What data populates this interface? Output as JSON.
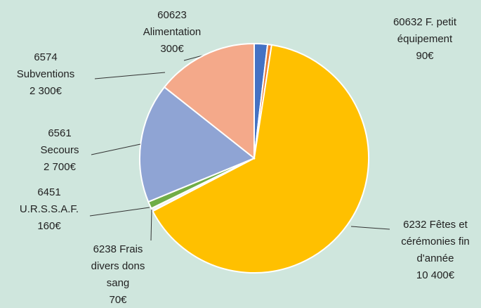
{
  "chart_data": {
    "type": "pie",
    "categories": [
      "60623 Alimentation",
      "60632 F. petit équipement",
      "6232 Fêtes et cérémonies fin d'année",
      "6238 Frais divers dons sang",
      "6451 U.R.S.S.A.F.",
      "6561 Secours",
      "6574 Subventions"
    ],
    "values": [
      300,
      90,
      10400,
      70,
      160,
      2700,
      2300
    ],
    "value_labels": [
      "300€",
      "90€",
      "10 400€",
      "70€",
      "160€",
      "2 700€",
      "2 300€"
    ],
    "colors": [
      "#4472c4",
      "#ed7d31",
      "#ffc000",
      "#f2f2f2",
      "#70ad47",
      "#8fa4d4",
      "#f4a98a"
    ]
  }
}
